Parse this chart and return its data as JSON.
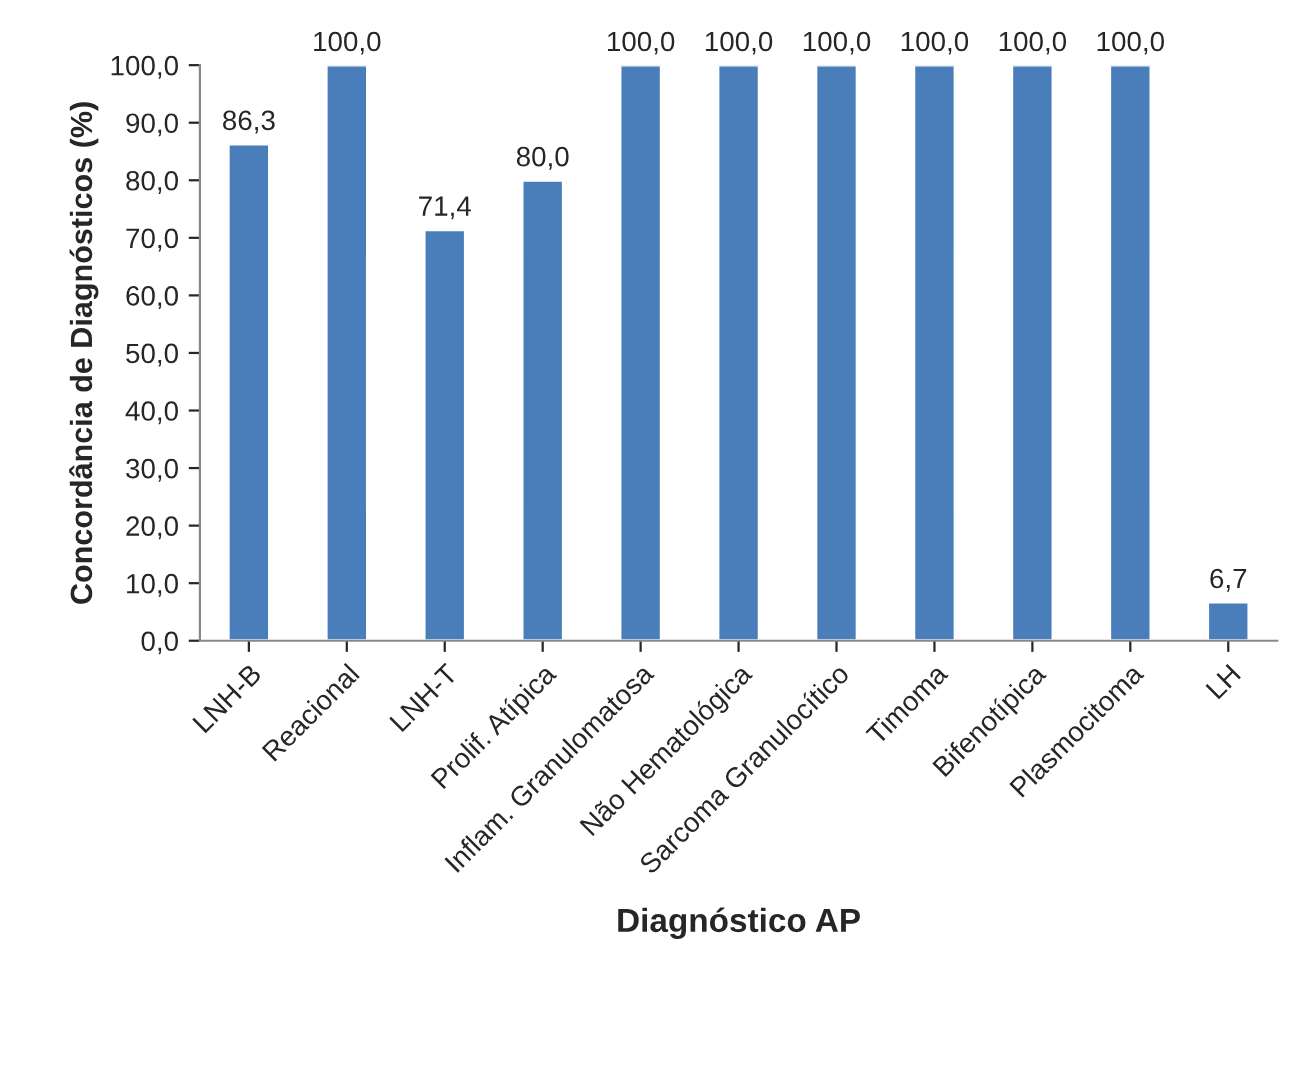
{
  "chart_data": {
    "type": "bar",
    "categories": [
      "LNH-B",
      "Reacional",
      "LNH-T",
      "Prolif. Atípica",
      "Inflam. Granulomatosa",
      "Não Hematológica",
      "Sarcoma Granulocítico",
      "Timoma",
      "Bifenotípica",
      "Plasmocitoma",
      "LH"
    ],
    "values": [
      86.3,
      100,
      71.4,
      80,
      100,
      100,
      100,
      100,
      100,
      100,
      6.7
    ],
    "value_labels": [
      "86,3",
      "100,0",
      "71,4",
      "80,0",
      "100,0",
      "100,0",
      "100,0",
      "100,0",
      "100,0",
      "100,0",
      "6,7"
    ],
    "color": "#4a7ebb",
    "xlabel": "Diagnóstico AP",
    "ylabel": "Concordância de Diagnósticos (%)",
    "ylim": [
      0,
      100
    ],
    "yticks": [
      {
        "value": 0,
        "label": "0,0"
      },
      {
        "value": 10,
        "label": "10,0"
      },
      {
        "value": 20,
        "label": "20,0"
      },
      {
        "value": 30,
        "label": "30,0"
      },
      {
        "value": 40,
        "label": "40,0"
      },
      {
        "value": 50,
        "label": "50,0"
      },
      {
        "value": 60,
        "label": "60,0"
      },
      {
        "value": 70,
        "label": "70,0"
      },
      {
        "value": 80,
        "label": "80,0"
      },
      {
        "value": 90,
        "label": "90,0"
      },
      {
        "value": 100,
        "label": "100,0"
      }
    ],
    "grid": false,
    "legend": false
  }
}
